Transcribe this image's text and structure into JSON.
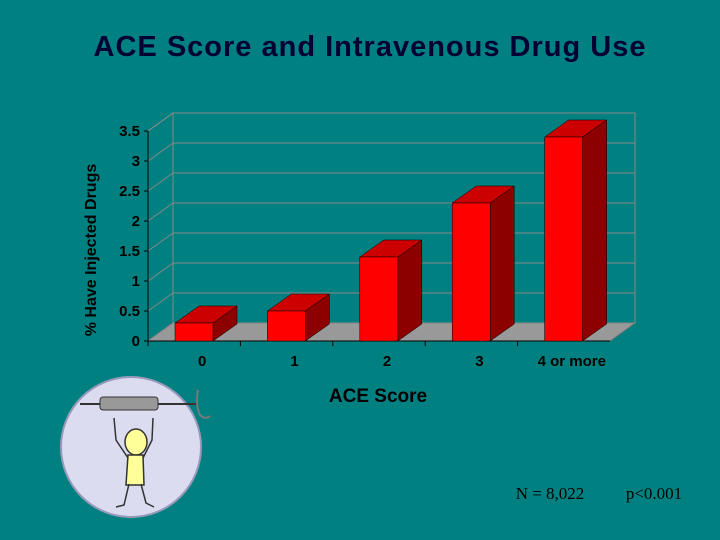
{
  "chart_data": {
    "type": "bar3d",
    "title": "ACE Score and Intravenous Drug Use",
    "x_label": "ACE Score",
    "y_label": "% Have Injected Drugs",
    "categories": [
      "0",
      "1",
      "2",
      "3",
      "4 or more"
    ],
    "values": [
      0.3,
      0.5,
      1.4,
      2.3,
      3.4
    ],
    "color": "#ff0000",
    "ylim": [
      0,
      3.5
    ],
    "yticks": [
      0,
      0.5,
      1,
      1.5,
      2,
      2.5,
      3,
      3.5
    ],
    "grid": true,
    "annotations": [
      "N = 8,022",
      "p<0.001"
    ]
  }
}
